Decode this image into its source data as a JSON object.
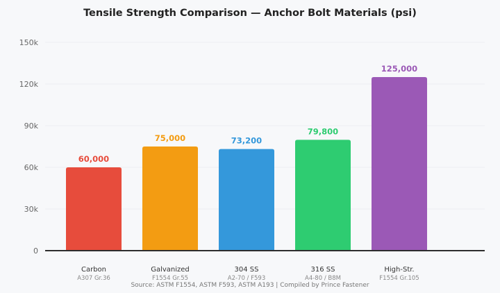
{
  "chart_data": {
    "type": "bar",
    "title": "Tensile Strength Comparison — Anchor Bolt Materials (psi)",
    "categories": [
      "Carbon",
      "Galvanized",
      "304 SS",
      "316 SS",
      "High-Str."
    ],
    "subcategories": [
      "A307 Gr.36",
      "F1554 Gr.55",
      "A2-70 / F593",
      "A4-80 / B8M",
      "F1554 Gr.105"
    ],
    "values": [
      60000,
      75000,
      73200,
      79800,
      125000
    ],
    "data_labels": [
      "60,000",
      "75,000",
      "73,200",
      "79,800",
      "125,000"
    ],
    "colors": [
      "#e74c3c",
      "#f39c12",
      "#3498db",
      "#2ecc71",
      "#9b59b6"
    ],
    "ylim": [
      0,
      150000
    ],
    "yticks": [
      0,
      30000,
      60000,
      90000,
      120000,
      150000
    ],
    "ytick_labels": [
      "0",
      "30k",
      "60k",
      "90k",
      "120k",
      "150k"
    ],
    "grid": true,
    "xlabel": "",
    "ylabel": "",
    "source": "Source: ASTM F1554, ASTM F593, ASTM A193 | Compiled by Prince Fastener"
  }
}
